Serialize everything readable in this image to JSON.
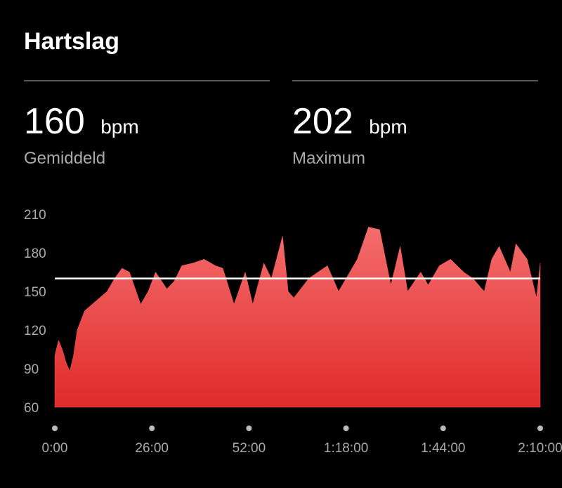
{
  "header": {
    "title": "Hartslag"
  },
  "stats": [
    {
      "value": 160,
      "unit": "bpm",
      "label": "Gemiddeld"
    },
    {
      "value": 202,
      "unit": "bpm",
      "label": "Maximum"
    }
  ],
  "chart_data": {
    "type": "area",
    "color": "#f05a5a",
    "line_color": "#ffffff",
    "x": [
      0,
      1,
      2,
      3,
      4,
      5,
      6,
      8,
      10,
      12,
      14,
      16,
      18,
      20,
      23,
      25,
      27,
      30,
      32,
      34,
      37,
      40,
      43,
      45,
      48,
      51,
      53,
      56,
      58,
      61,
      62.5,
      64,
      68,
      73,
      76,
      78,
      81,
      84,
      87,
      90,
      92.5,
      94.5,
      98,
      100,
      103,
      106,
      109.5,
      112,
      115,
      117,
      119,
      122,
      123.5,
      126.5,
      129,
      130
    ],
    "values": [
      100,
      112,
      105,
      95,
      88,
      100,
      120,
      135,
      140,
      145,
      150,
      160,
      168,
      165,
      140,
      150,
      165,
      152,
      158,
      170,
      172,
      175,
      170,
      168,
      140,
      165,
      140,
      172,
      160,
      193,
      150,
      145,
      160,
      170,
      150,
      160,
      175,
      200,
      198,
      155,
      185,
      150,
      165,
      155,
      170,
      175,
      165,
      160,
      150,
      175,
      185,
      165,
      187,
      175,
      145,
      172
    ],
    "xlim": [
      0,
      130
    ],
    "xticks": [
      {
        "value": 0,
        "label": "0:00"
      },
      {
        "value": 26,
        "label": "26:00"
      },
      {
        "value": 52,
        "label": "52:00"
      },
      {
        "value": 78,
        "label": "1:18:00"
      },
      {
        "value": 104,
        "label": "1:44:00"
      },
      {
        "value": 130,
        "label": "2:10:00"
      }
    ],
    "ylim": [
      60,
      210
    ],
    "yticks": [
      60,
      90,
      120,
      150,
      180,
      210
    ],
    "grid": false
  }
}
